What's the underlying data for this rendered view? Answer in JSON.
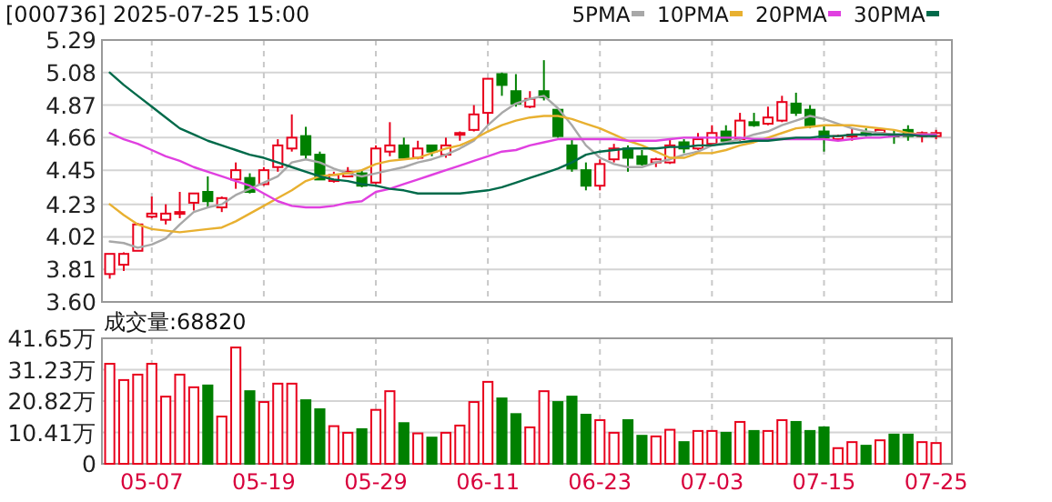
{
  "chart_data": [
    {
      "type": "candlestick",
      "title": "[000736] 2025-07-25 15:00",
      "categories": [
        null,
        null,
        null,
        null,
        null,
        null,
        null,
        null,
        null,
        null,
        null,
        null,
        null,
        null,
        null,
        null,
        null,
        null,
        null,
        null,
        null,
        null,
        null,
        null,
        null,
        null,
        null,
        null,
        null,
        null,
        null,
        null,
        null,
        null,
        null,
        null,
        null,
        null,
        null,
        null,
        null,
        null,
        null,
        null,
        null,
        null,
        null,
        null,
        null,
        null,
        null,
        null,
        null,
        null,
        null,
        null,
        null,
        null,
        null,
        null
      ],
      "ohlc": [
        [
          3.78,
          3.91,
          3.75,
          3.91
        ],
        [
          3.84,
          3.92,
          3.8,
          3.91
        ],
        [
          3.93,
          4.11,
          3.93,
          4.1
        ],
        [
          4.15,
          4.28,
          4.14,
          4.17
        ],
        [
          4.13,
          4.23,
          4.1,
          4.17
        ],
        [
          4.17,
          4.31,
          4.14,
          4.18
        ],
        [
          4.24,
          4.3,
          4.19,
          4.3
        ],
        [
          4.31,
          4.41,
          4.21,
          4.25
        ],
        [
          4.21,
          4.28,
          4.18,
          4.27
        ],
        [
          4.39,
          4.5,
          4.33,
          4.45
        ],
        [
          4.4,
          4.43,
          4.3,
          4.31
        ],
        [
          4.36,
          4.47,
          4.35,
          4.45
        ],
        [
          4.47,
          4.65,
          4.44,
          4.61
        ],
        [
          4.59,
          4.81,
          4.57,
          4.66
        ],
        [
          4.67,
          4.73,
          4.52,
          4.55
        ],
        [
          4.55,
          4.57,
          4.39,
          4.39
        ],
        [
          4.38,
          4.44,
          4.37,
          4.42
        ],
        [
          4.41,
          4.47,
          4.41,
          4.44
        ],
        [
          4.43,
          4.45,
          4.34,
          4.35
        ],
        [
          4.37,
          4.61,
          4.36,
          4.59
        ],
        [
          4.57,
          4.76,
          4.54,
          4.61
        ],
        [
          4.61,
          4.66,
          4.52,
          4.53
        ],
        [
          4.53,
          4.64,
          4.52,
          4.59
        ],
        [
          4.61,
          4.61,
          4.54,
          4.57
        ],
        [
          4.55,
          4.66,
          4.53,
          4.61
        ],
        [
          4.68,
          4.7,
          4.64,
          4.69
        ],
        [
          4.71,
          4.87,
          4.7,
          4.81
        ],
        [
          4.82,
          5.04,
          4.74,
          5.04
        ],
        [
          5.07,
          5.08,
          4.93,
          5.0
        ],
        [
          4.96,
          5.07,
          4.86,
          4.88
        ],
        [
          4.86,
          4.96,
          4.85,
          4.91
        ],
        [
          4.96,
          5.16,
          4.9,
          4.92
        ],
        [
          4.84,
          4.85,
          4.66,
          4.67
        ],
        [
          4.61,
          4.65,
          4.44,
          4.46
        ],
        [
          4.45,
          4.5,
          4.32,
          4.35
        ],
        [
          4.35,
          4.52,
          4.32,
          4.49
        ],
        [
          4.52,
          4.62,
          4.5,
          4.59
        ],
        [
          4.59,
          4.61,
          4.44,
          4.53
        ],
        [
          4.54,
          4.58,
          4.48,
          4.49
        ],
        [
          4.5,
          4.53,
          4.47,
          4.52
        ],
        [
          4.5,
          4.65,
          4.49,
          4.61
        ],
        [
          4.63,
          4.65,
          4.56,
          4.59
        ],
        [
          4.59,
          4.69,
          4.58,
          4.65
        ],
        [
          4.62,
          4.74,
          4.61,
          4.69
        ],
        [
          4.7,
          4.74,
          4.64,
          4.64
        ],
        [
          4.65,
          4.82,
          4.64,
          4.77
        ],
        [
          4.76,
          4.82,
          4.73,
          4.74
        ],
        [
          4.75,
          4.86,
          4.74,
          4.79
        ],
        [
          4.77,
          4.93,
          4.76,
          4.89
        ],
        [
          4.88,
          4.95,
          4.8,
          4.82
        ],
        [
          4.84,
          4.87,
          4.72,
          4.74
        ],
        [
          4.7,
          4.74,
          4.57,
          4.66
        ],
        [
          4.65,
          4.68,
          4.64,
          4.67
        ],
        [
          4.67,
          4.72,
          4.64,
          4.68
        ],
        [
          4.69,
          4.72,
          4.67,
          4.68
        ],
        [
          4.69,
          4.72,
          4.68,
          4.71
        ],
        [
          4.68,
          4.71,
          4.62,
          4.67
        ],
        [
          4.71,
          4.74,
          4.64,
          4.67
        ],
        [
          4.67,
          4.7,
          4.63,
          4.69
        ],
        [
          4.67,
          4.71,
          4.65,
          4.69
        ]
      ],
      "colors": [
        "#e8001c",
        "#e8001c",
        "#e8001c",
        "#e8001c",
        "#e8001c",
        "#e8001c",
        "#e8001c",
        "#008000",
        "#e8001c",
        "#e8001c",
        "#008000",
        "#e8001c",
        "#e8001c",
        "#e8001c",
        "#008000",
        "#008000",
        "#e8001c",
        "#e8001c",
        "#008000",
        "#e8001c",
        "#e8001c",
        "#008000",
        "#e8001c",
        "#008000",
        "#e8001c",
        "#e8001c",
        "#e8001c",
        "#e8001c",
        "#008000",
        "#008000",
        "#e8001c",
        "#008000",
        "#008000",
        "#008000",
        "#008000",
        "#e8001c",
        "#e8001c",
        "#008000",
        "#008000",
        "#e8001c",
        "#e8001c",
        "#008000",
        "#e8001c",
        "#e8001c",
        "#008000",
        "#e8001c",
        "#008000",
        "#e8001c",
        "#e8001c",
        "#008000",
        "#008000",
        "#008000",
        "#e8001c",
        "#e8001c",
        "#008000",
        "#e8001c",
        "#008000",
        "#008000",
        "#e8001c",
        "#e8001c"
      ],
      "series": [
        {
          "name": "5PMA",
          "type": "line",
          "color": "#a8a8a8",
          "values": [
            3.99,
            3.98,
            3.95,
            3.97,
            4.01,
            4.1,
            4.18,
            4.21,
            4.23,
            4.29,
            4.33,
            4.37,
            4.41,
            4.5,
            4.52,
            4.5,
            4.46,
            4.43,
            4.41,
            4.43,
            4.45,
            4.47,
            4.5,
            4.52,
            4.55,
            4.59,
            4.64,
            4.74,
            4.82,
            4.88,
            4.91,
            4.93,
            4.85,
            4.74,
            4.61,
            4.53,
            4.49,
            4.47,
            4.47,
            4.5,
            4.52,
            4.55,
            4.57,
            4.61,
            4.63,
            4.65,
            4.68,
            4.7,
            4.74,
            4.77,
            4.8,
            4.78,
            4.75,
            4.72,
            4.7,
            4.69,
            4.68,
            4.68,
            4.68,
            4.68
          ]
        },
        {
          "name": "10PMA",
          "type": "line",
          "color": "#e8b030",
          "values": [
            4.23,
            4.16,
            4.1,
            4.07,
            4.06,
            4.05,
            4.06,
            4.07,
            4.08,
            4.12,
            4.17,
            4.22,
            4.27,
            4.32,
            4.38,
            4.41,
            4.42,
            4.43,
            4.45,
            4.49,
            4.51,
            4.52,
            4.53,
            4.56,
            4.59,
            4.61,
            4.65,
            4.7,
            4.74,
            4.77,
            4.79,
            4.8,
            4.8,
            4.78,
            4.75,
            4.72,
            4.68,
            4.64,
            4.61,
            4.57,
            4.53,
            4.53,
            4.56,
            4.56,
            4.58,
            4.61,
            4.63,
            4.66,
            4.69,
            4.72,
            4.73,
            4.74,
            4.74,
            4.74,
            4.73,
            4.72,
            4.71,
            4.69,
            4.68,
            4.68
          ]
        },
        {
          "name": "20PMA",
          "type": "line",
          "color": "#e040e0",
          "values": [
            4.69,
            4.65,
            4.62,
            4.58,
            4.54,
            4.51,
            4.47,
            4.44,
            4.41,
            4.38,
            4.35,
            4.3,
            4.25,
            4.22,
            4.21,
            4.21,
            4.22,
            4.24,
            4.25,
            4.31,
            4.33,
            4.36,
            4.39,
            4.42,
            4.45,
            4.48,
            4.51,
            4.54,
            4.57,
            4.58,
            4.61,
            4.63,
            4.65,
            4.65,
            4.65,
            4.65,
            4.65,
            4.64,
            4.64,
            4.64,
            4.65,
            4.66,
            4.66,
            4.66,
            4.66,
            4.66,
            4.65,
            4.65,
            4.65,
            4.65,
            4.65,
            4.65,
            4.64,
            4.65,
            4.66,
            4.66,
            4.67,
            4.68,
            4.68,
            4.68
          ]
        },
        {
          "name": "30PMA",
          "type": "line",
          "color": "#006a4a",
          "values": [
            5.08,
            5.0,
            4.93,
            4.86,
            4.79,
            4.72,
            4.68,
            4.64,
            4.61,
            4.58,
            4.55,
            4.53,
            4.5,
            4.47,
            4.44,
            4.41,
            4.39,
            4.38,
            4.36,
            4.35,
            4.33,
            4.32,
            4.3,
            4.3,
            4.3,
            4.3,
            4.31,
            4.32,
            4.34,
            4.37,
            4.4,
            4.43,
            4.46,
            4.5,
            4.55,
            4.57,
            4.58,
            4.59,
            4.59,
            4.59,
            4.6,
            4.6,
            4.61,
            4.61,
            4.62,
            4.63,
            4.64,
            4.64,
            4.65,
            4.66,
            4.66,
            4.67,
            4.67,
            4.68,
            4.68,
            4.68,
            4.68,
            4.68,
            4.67,
            4.67
          ]
        }
      ],
      "ylim": [
        3.6,
        5.29
      ],
      "yticks": [
        {
          "value": 3.6,
          "label": "3.60"
        },
        3.81,
        4.02,
        4.23,
        4.45,
        4.66,
        4.87,
        5.08,
        5.29
      ],
      "grid": true,
      "legend": "top right",
      "tick_labels": "y"
    },
    {
      "type": "bar",
      "title": "成交量:68820",
      "categories": [
        null,
        null,
        null,
        "05-07",
        null,
        null,
        null,
        null,
        null,
        null,
        null,
        "05-19",
        null,
        null,
        null,
        null,
        null,
        null,
        null,
        "05-29",
        null,
        null,
        null,
        null,
        null,
        null,
        null,
        "06-11",
        null,
        null,
        null,
        null,
        null,
        null,
        null,
        "06-23",
        null,
        null,
        null,
        null,
        null,
        null,
        null,
        "07-03",
        null,
        null,
        null,
        null,
        null,
        null,
        null,
        "07-15",
        null,
        null,
        null,
        null,
        null,
        null,
        null,
        "07-25"
      ],
      "values": [
        33.2,
        27.8,
        29.6,
        33.2,
        22.3,
        29.6,
        25.4,
        26.0,
        15.7,
        38.6,
        24.1,
        20.5,
        26.6,
        26.6,
        21.1,
        18.1,
        12.5,
        10.3,
        11.5,
        17.9,
        24.1,
        13.5,
        10.1,
        8.7,
        10.3,
        12.7,
        20.5,
        27.2,
        21.7,
        16.5,
        12.1,
        24.1,
        20.5,
        22.3,
        16.3,
        14.5,
        10.3,
        14.5,
        9.3,
        9.1,
        11.3,
        7.2,
        10.9,
        10.9,
        10.3,
        13.9,
        10.9,
        10.9,
        14.5,
        13.9,
        10.9,
        12.1,
        5.2,
        7.2,
        6.0,
        7.8,
        9.7,
        9.7,
        7.2,
        6.9
      ],
      "colors": [
        "#e8001c",
        "#e8001c",
        "#e8001c",
        "#e8001c",
        "#e8001c",
        "#e8001c",
        "#e8001c",
        "#008000",
        "#e8001c",
        "#e8001c",
        "#008000",
        "#e8001c",
        "#e8001c",
        "#e8001c",
        "#008000",
        "#008000",
        "#e8001c",
        "#e8001c",
        "#008000",
        "#e8001c",
        "#e8001c",
        "#008000",
        "#e8001c",
        "#008000",
        "#e8001c",
        "#e8001c",
        "#e8001c",
        "#e8001c",
        "#008000",
        "#008000",
        "#e8001c",
        "#e8001c",
        "#008000",
        "#008000",
        "#008000",
        "#e8001c",
        "#e8001c",
        "#008000",
        "#008000",
        "#e8001c",
        "#e8001c",
        "#008000",
        "#e8001c",
        "#e8001c",
        "#008000",
        "#e8001c",
        "#008000",
        "#e8001c",
        "#e8001c",
        "#008000",
        "#008000",
        "#008000",
        "#e8001c",
        "#e8001c",
        "#008000",
        "#e8001c",
        "#008000",
        "#008000",
        "#e8001c",
        "#e8001c"
      ],
      "ylim": [
        0,
        41.65
      ],
      "yticks": [
        0,
        {
          "value": 10.41,
          "label": "10.41万"
        },
        {
          "value": 20.82,
          "label": "20.82万"
        },
        {
          "value": 31.23,
          "label": "31.23万"
        },
        {
          "value": 41.65,
          "label": "41.65万"
        }
      ],
      "grid": true
    }
  ]
}
